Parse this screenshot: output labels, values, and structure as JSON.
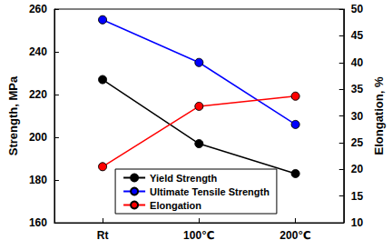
{
  "chart_data": {
    "type": "line",
    "categories": [
      "Rt",
      "100℃",
      "200℃"
    ],
    "ylabel": "Strength, MPa",
    "y2label": "Elongation, %",
    "ylim": [
      160,
      260
    ],
    "yticks": [
      160,
      180,
      200,
      220,
      240,
      260
    ],
    "y2lim": [
      10,
      50
    ],
    "y2ticks": [
      10,
      15,
      20,
      25,
      30,
      35,
      40,
      45,
      50
    ],
    "grid": false,
    "legend": "lower center",
    "series": [
      {
        "name": "Yield Strength",
        "color": "#000000",
        "marker": "circle",
        "values": [
          227,
          197,
          183
        ]
      },
      {
        "name": "Ultimate Tensile Strength",
        "color": "#0000ff",
        "marker": "circle",
        "values": [
          255,
          235,
          206
        ]
      },
      {
        "name": "Elongation",
        "color": "#ff0000",
        "marker": "circle",
        "axis": "y2",
        "values": [
          20.5,
          31.8,
          33.7
        ]
      }
    ]
  }
}
